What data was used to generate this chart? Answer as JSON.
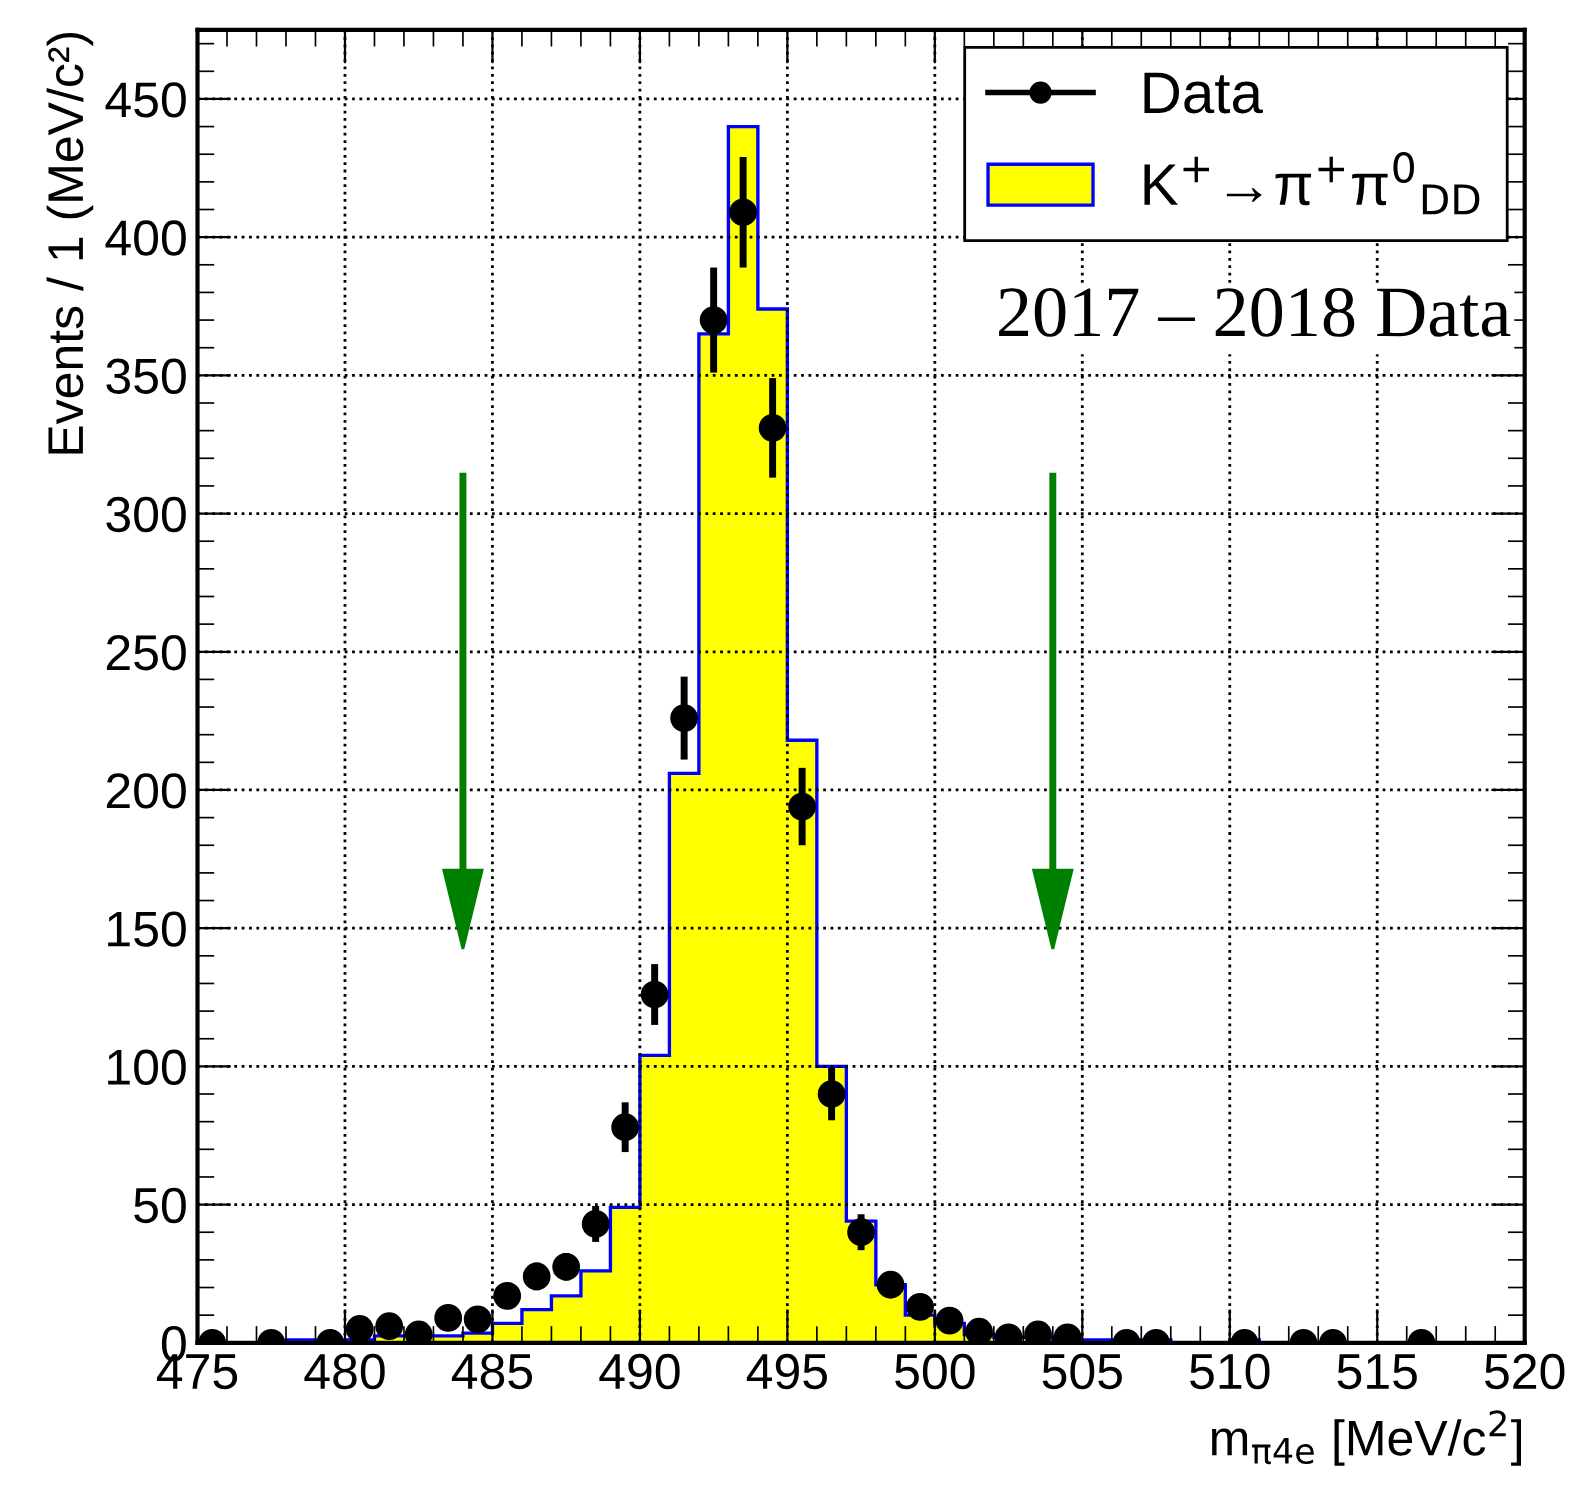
{
  "chart_data": {
    "type": "histogram",
    "xlabel": "m$_{π4e}$ [MeV/c$^{2}$]",
    "ylabel": "Events / 1 (MeV/c²)",
    "bins": [
      475,
      476,
      477,
      478,
      479,
      480,
      481,
      482,
      483,
      484,
      485,
      486,
      487,
      488,
      489,
      490,
      491,
      492,
      493,
      494,
      495,
      496,
      497,
      498,
      499,
      500,
      501,
      502,
      503,
      504,
      505,
      506,
      507,
      508,
      509,
      510,
      511,
      512,
      513,
      514,
      515,
      516,
      517,
      518,
      519,
      520
    ],
    "series": [
      {
        "name": "Data",
        "type": "scatter",
        "color": "#000000",
        "marker": "circle",
        "x": [
          475.5,
          477.5,
          479.5,
          480.5,
          481.5,
          482.5,
          483.5,
          484.5,
          485.5,
          486.5,
          487.5,
          488.5,
          489.5,
          490.5,
          491.5,
          492.5,
          493.5,
          494.5,
          495.5,
          496.5,
          497.5,
          498.5,
          499.5,
          500.5,
          501.5,
          502.5,
          503.5,
          504.5,
          506.5,
          507.5,
          510.5,
          512.5,
          513.5,
          516.5
        ],
        "values": [
          0,
          0,
          0,
          5,
          6,
          3,
          9,
          8.5,
          17,
          24,
          27.5,
          43,
          78,
          126,
          226,
          370,
          409,
          331,
          194,
          90,
          40,
          21,
          13,
          8,
          4,
          2,
          3,
          2,
          0,
          0,
          0,
          0,
          0,
          0
        ],
        "errors": [
          null,
          null,
          null,
          2,
          2.5,
          2,
          3,
          3,
          4,
          5,
          5,
          6.5,
          9,
          11,
          15,
          19,
          20,
          18,
          14,
          9.5,
          6.5,
          4.5,
          3.5,
          3,
          2,
          1.5,
          2,
          1.5,
          null,
          null,
          null,
          null,
          null,
          null
        ]
      },
      {
        "name": "K$^{+}$→π$^{+}$π$^{0}$$_{DD}$",
        "color": "#ffff00",
        "values": [
          0,
          0,
          0,
          1,
          1,
          1,
          2.5,
          2.5,
          2.5,
          3.5,
          7,
          12,
          17,
          26,
          49,
          104,
          206,
          365,
          440,
          374,
          218,
          100,
          44,
          21,
          10,
          7,
          3,
          2,
          2,
          1,
          1,
          1,
          1,
          0,
          0,
          1,
          0,
          0,
          0,
          0,
          0,
          0,
          0,
          0,
          0
        ]
      }
    ],
    "xlim": [
      475,
      520
    ],
    "xticks": [
      475,
      480,
      485,
      490,
      495,
      500,
      505,
      510,
      515,
      520
    ],
    "ylim": [
      0,
      475
    ],
    "yticks": [
      0,
      50,
      100,
      150,
      200,
      250,
      300,
      350,
      400,
      450
    ],
    "grid": true,
    "legend": "top right",
    "ref_lines": [
      {
        "axis": "x",
        "value": 484,
        "color": "#008000"
      },
      {
        "axis": "x",
        "value": 504,
        "color": "#008000"
      }
    ],
    "annotations": [
      "2017 – 2018 Data"
    ]
  }
}
